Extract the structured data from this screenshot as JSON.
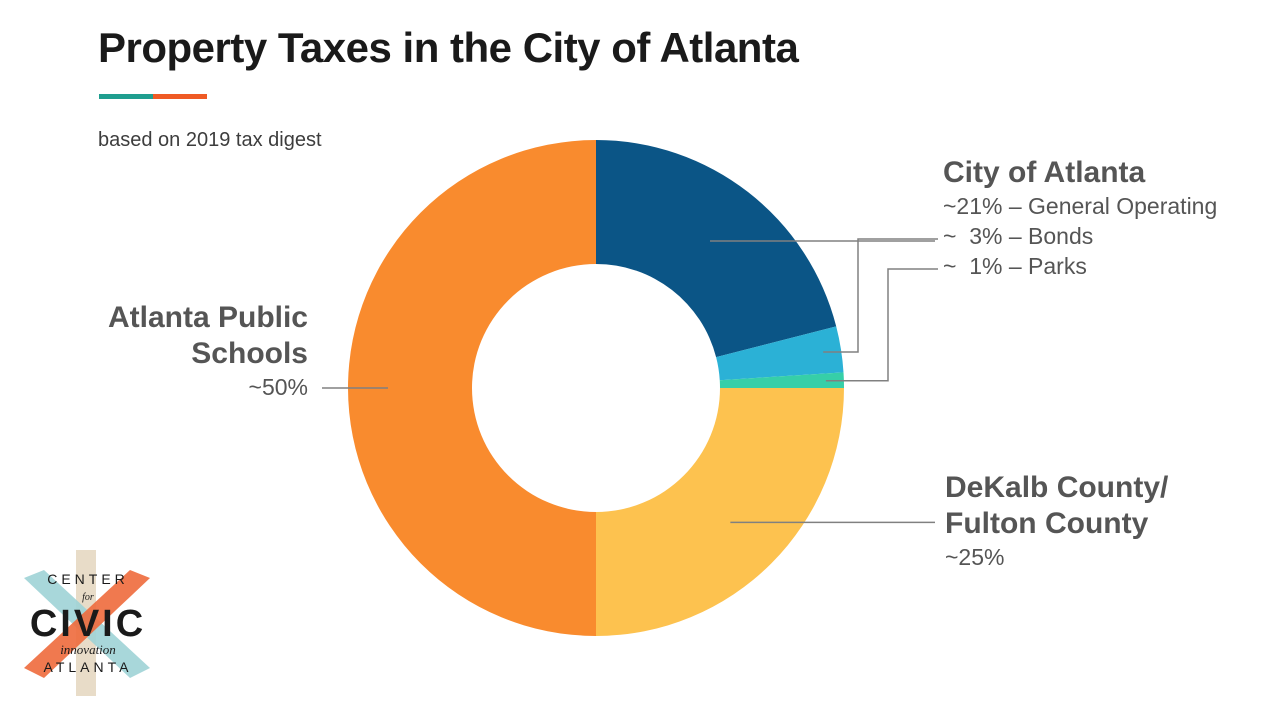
{
  "title": "Property Taxes in the City of Atlanta",
  "subtitle": "based on 2019 tax digest",
  "colors": {
    "accent_teal": "#1f9e8f",
    "accent_orange": "#ef5a24",
    "leader": "#808080"
  },
  "labels": {
    "aps": {
      "line1": "Atlanta Public",
      "line2": "Schools",
      "pct": "~50%"
    },
    "coa": {
      "head": "City of Atlanta",
      "general": "~21% – General Operating",
      "bonds": "~  3% – Bonds",
      "parks": "~  1% – Parks"
    },
    "dekalb": {
      "line1": "DeKalb County/",
      "line2": "Fulton County",
      "pct": "~25%"
    }
  },
  "logo": {
    "top": "CENTER",
    "for": "for",
    "main": "CIVIC",
    "script": "innovation",
    "bottom": "ATLANTA"
  },
  "chart_data": {
    "type": "pie",
    "donut": true,
    "slices": [
      {
        "label": "City of Atlanta – General Operating",
        "value": 21,
        "color": "#0b5586"
      },
      {
        "label": "City of Atlanta – Bonds",
        "value": 3,
        "color": "#2bb1d6"
      },
      {
        "label": "City of Atlanta – Parks",
        "value": 1,
        "color": "#36cfa8"
      },
      {
        "label": "DeKalb County/Fulton County",
        "value": 25,
        "color": "#fdc24f"
      },
      {
        "label": "Atlanta Public Schools",
        "value": 50,
        "color": "#f98b2e"
      }
    ]
  }
}
